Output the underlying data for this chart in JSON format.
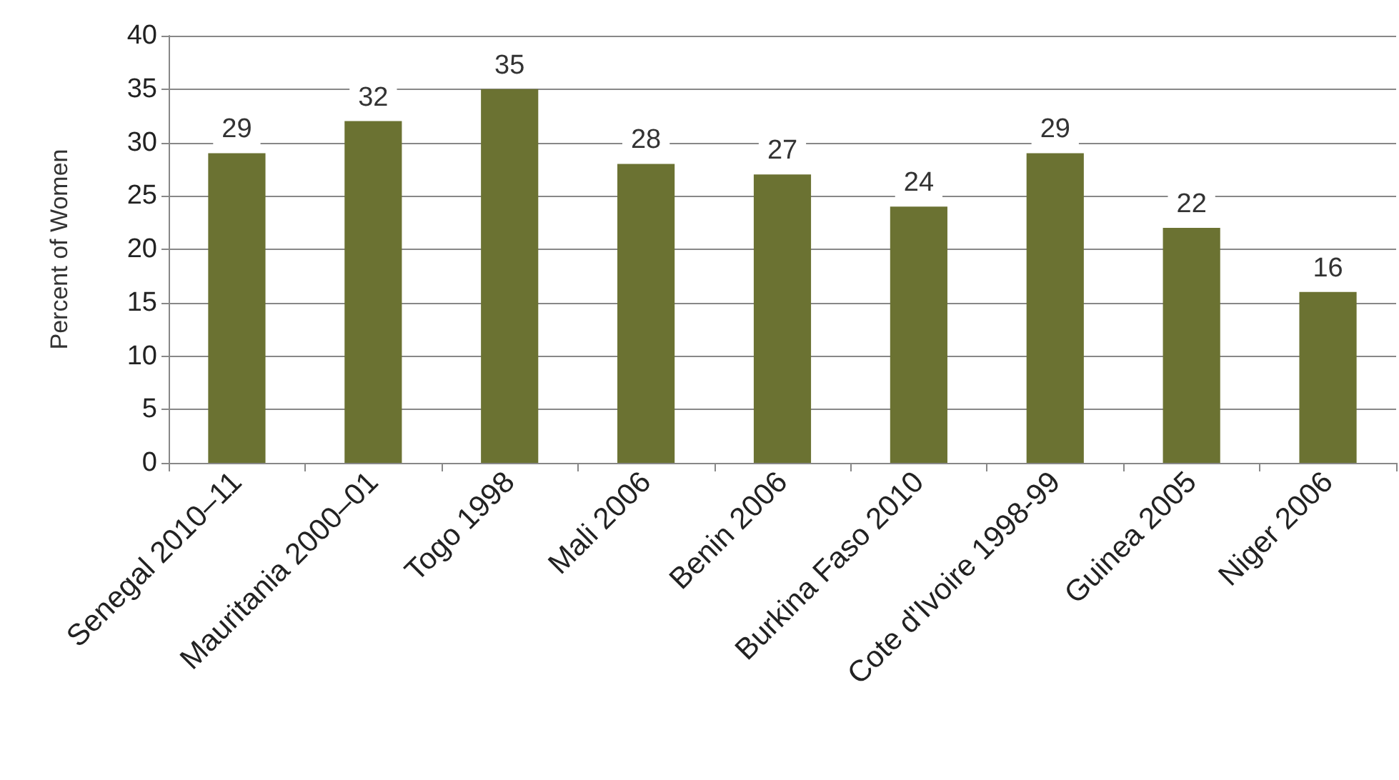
{
  "chart_data": {
    "type": "bar",
    "ylabel": "Percent of Women",
    "categories": [
      "Senegal 2010–11",
      "Mauritania 2000–01",
      "Togo 1998",
      "Mali 2006",
      "Benin 2006",
      "Burkina Faso 2010",
      "Cote d'Ivoire 1998-99",
      "Guinea 2005",
      "Niger 2006"
    ],
    "values": [
      29,
      32,
      35,
      28,
      27,
      24,
      29,
      22,
      16
    ],
    "color": "#6b7232",
    "ylim": [
      0,
      40
    ],
    "yticks": [
      0,
      5,
      10,
      15,
      20,
      25,
      30,
      35,
      40
    ],
    "grid": "y",
    "data_labels": true
  }
}
